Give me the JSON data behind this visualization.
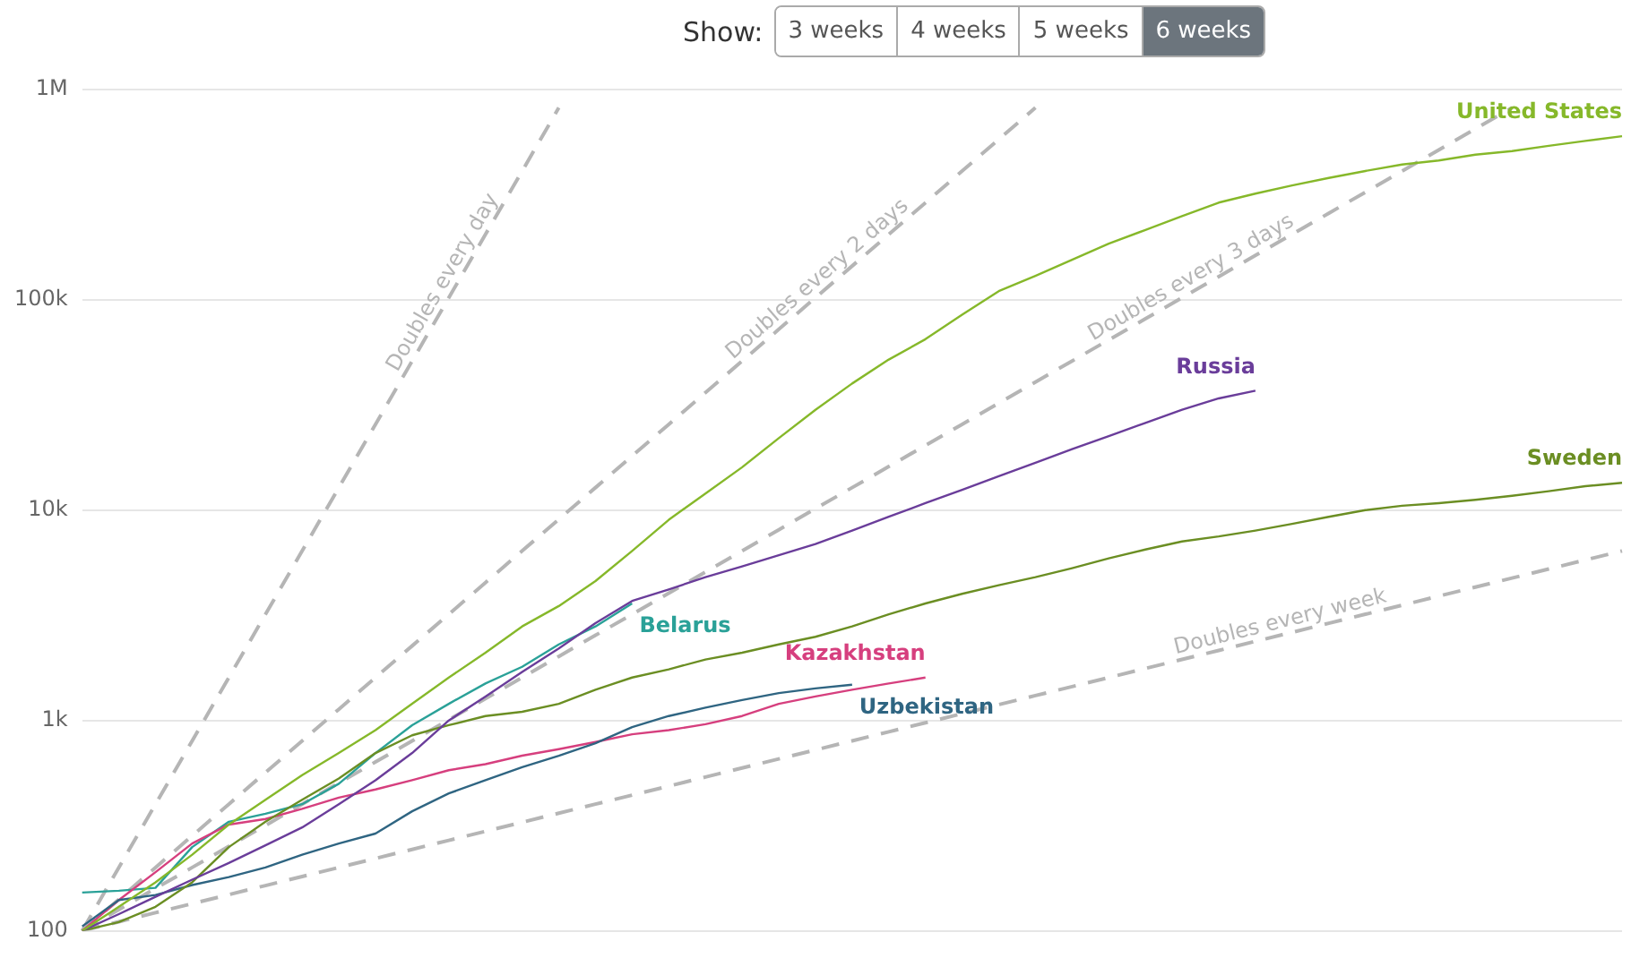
{
  "chart_data": {
    "type": "line",
    "log": "y",
    "grid": "y",
    "legend": false,
    "tick_labels": "y",
    "marker": "none",
    "annotations": [
      "Show:",
      "3 weeks",
      "4 weeks",
      "5 weeks",
      "6 weeks"
    ],
    "categories": [
      null,
      null,
      null,
      null,
      null,
      null,
      null,
      null,
      null,
      null,
      null,
      null,
      null,
      null,
      null,
      null,
      null,
      null,
      null,
      null,
      null,
      null,
      null,
      null,
      null,
      null,
      null,
      null,
      null,
      null,
      null,
      null,
      null,
      null,
      null,
      null,
      null,
      null,
      null,
      null,
      null,
      null,
      null
    ],
    "ylim": [
      100,
      1000000
    ],
    "yticks": [
      {
        "value": 100,
        "label": "100"
      },
      {
        "value": 1000,
        "label": "1k"
      },
      {
        "value": 10000,
        "label": "10k"
      },
      {
        "value": 100000,
        "label": "100k"
      },
      {
        "value": 1000000,
        "label": "1M"
      }
    ],
    "series": [
      {
        "name": "Doubles every day",
        "color": "#b5b5b5",
        "line_style": "dashed",
        "values": [
          100,
          200,
          400,
          800,
          1600,
          3200,
          6400,
          12800,
          25600,
          51200,
          102400,
          204800,
          409600,
          819200,
          null,
          null,
          null,
          null,
          null,
          null,
          null,
          null,
          null,
          null,
          null,
          null,
          null,
          null,
          null,
          null,
          null,
          null,
          null,
          null,
          null,
          null,
          null,
          null,
          null,
          null,
          null,
          null,
          null
        ]
      },
      {
        "name": "Doubles every 2 days",
        "color": "#b5b5b5",
        "line_style": "dashed",
        "values": [
          100,
          141,
          200,
          283,
          400,
          566,
          800,
          1131,
          1600,
          2263,
          3200,
          4525,
          6400,
          9051,
          12800,
          18102,
          25600,
          36204,
          51200,
          72408,
          102400,
          144815,
          204800,
          289631,
          409600,
          579262,
          819200,
          null,
          null,
          null,
          null,
          null,
          null,
          null,
          null,
          null,
          null,
          null,
          null,
          null,
          null,
          null,
          null
        ]
      },
      {
        "name": "Doubles every 3 days",
        "color": "#b5b5b5",
        "line_style": "dashed",
        "values": [
          100,
          126,
          159,
          200,
          252,
          317,
          400,
          504,
          635,
          800,
          1008,
          1270,
          1600,
          2016,
          2540,
          3200,
          4032,
          5080,
          6400,
          8063,
          10159,
          12800,
          16127,
          20319,
          25600,
          32254,
          40637,
          51200,
          64508,
          81275,
          102400,
          129016,
          162550,
          204800,
          258032,
          325100,
          409600,
          516064,
          650200,
          819200,
          null,
          null,
          null
        ]
      },
      {
        "name": "Doubles every week",
        "color": "#b5b5b5",
        "line_style": "dashed",
        "values": [
          100,
          110.4,
          121.9,
          134.6,
          148.6,
          164.1,
          181.1,
          200,
          220.8,
          243.8,
          269.2,
          297.2,
          328.1,
          362.3,
          400,
          441.6,
          487.6,
          538.4,
          594.4,
          656.3,
          724.6,
          800,
          883.3,
          975.3,
          1077,
          1189,
          1313,
          1449,
          1600,
          1767,
          1951,
          2153,
          2378,
          2625,
          2898,
          3200,
          3533,
          3901,
          4307,
          4756,
          5251,
          5797,
          6400
        ]
      },
      {
        "name": "United States",
        "color": "#86b82a",
        "line_style": "solid",
        "values": [
          100,
          130,
          170,
          230,
          320,
          420,
          550,
          700,
          900,
          1200,
          1600,
          2100,
          2800,
          3500,
          4600,
          6400,
          9000,
          12000,
          16000,
          22000,
          30000,
          40000,
          52000,
          65000,
          85000,
          110000,
          130000,
          155000,
          185000,
          215000,
          250000,
          290000,
          320000,
          350000,
          380000,
          410000,
          440000,
          460000,
          490000,
          510000,
          540000,
          570000,
          600000
        ]
      },
      {
        "name": "Russia",
        "color": "#6a3d9a",
        "line_style": "solid",
        "values": [
          100,
          120,
          145,
          175,
          210,
          255,
          310,
          400,
          520,
          700,
          1000,
          1300,
          1700,
          2200,
          2900,
          3700,
          4200,
          4800,
          5400,
          6100,
          6900,
          8000,
          9300,
          10800,
          12500,
          14500,
          16800,
          19500,
          22500,
          26000,
          30000,
          34000,
          37000,
          null,
          null,
          null,
          null,
          null,
          null,
          null,
          null,
          null,
          null
        ]
      },
      {
        "name": "Sweden",
        "color": "#6b8e23",
        "line_style": "solid",
        "values": [
          100,
          110,
          130,
          170,
          250,
          330,
          420,
          530,
          700,
          850,
          950,
          1050,
          1100,
          1200,
          1400,
          1600,
          1750,
          1950,
          2100,
          2300,
          2500,
          2800,
          3200,
          3600,
          4000,
          4400,
          4800,
          5300,
          5900,
          6500,
          7100,
          7500,
          8000,
          8600,
          9300,
          10000,
          10500,
          10800,
          11200,
          11700,
          12300,
          13000,
          13500
        ]
      },
      {
        "name": "Uzbekistan",
        "color": "#2f6582",
        "line_style": "solid",
        "values": [
          105,
          140,
          148,
          165,
          180,
          200,
          230,
          260,
          290,
          370,
          450,
          520,
          600,
          680,
          780,
          930,
          1050,
          1150,
          1250,
          1350,
          1420,
          1480,
          null,
          null,
          null,
          null,
          null,
          null,
          null,
          null,
          null,
          null,
          null,
          null,
          null,
          null,
          null,
          null,
          null,
          null,
          null,
          null,
          null
        ]
      },
      {
        "name": "Kazakhstan",
        "color": "#d63f7e",
        "line_style": "solid",
        "values": [
          100,
          140,
          190,
          260,
          320,
          340,
          380,
          430,
          470,
          520,
          580,
          620,
          680,
          730,
          790,
          860,
          900,
          960,
          1050,
          1200,
          1300,
          1400,
          1500,
          1600,
          null,
          null,
          null,
          null,
          null,
          null,
          null,
          null,
          null,
          null,
          null,
          null,
          null,
          null,
          null,
          null,
          null,
          null,
          null
        ]
      },
      {
        "name": "Belarus",
        "color": "#2aa198",
        "line_style": "solid",
        "values": [
          152,
          155,
          160,
          250,
          330,
          360,
          400,
          500,
          700,
          950,
          1200,
          1500,
          1800,
          2300,
          2800,
          3600,
          null,
          null,
          null,
          null,
          null,
          null,
          null,
          null,
          null,
          null,
          null,
          null,
          null,
          null,
          null,
          null,
          null,
          null,
          null,
          null,
          null,
          null,
          null,
          null,
          null,
          null,
          null
        ]
      }
    ]
  }
}
